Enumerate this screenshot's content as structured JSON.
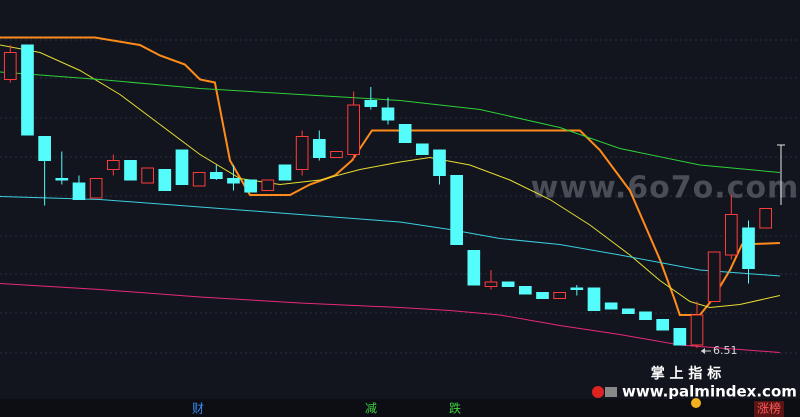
{
  "chart_data": {
    "type": "candlestick",
    "xlim": [
      -0.6,
      46
    ],
    "ylim": [
      6.05,
      8.83
    ],
    "up_color": "#ff3c3c",
    "down_color": "#54fcfc",
    "ohlc": {
      "open": [
        8.3,
        8.53,
        7.92,
        7.64,
        7.61,
        7.51,
        7.7,
        7.76,
        7.61,
        7.7,
        7.83,
        7.59,
        7.68,
        7.64,
        7.63,
        7.56,
        7.73,
        7.7,
        7.9,
        7.78,
        7.8,
        8.16,
        8.11,
        8.0,
        7.87,
        7.83,
        7.66,
        7.16,
        6.92,
        6.95,
        6.92,
        6.88,
        6.84,
        6.91,
        6.91,
        6.81,
        6.77,
        6.75,
        6.7,
        6.64,
        6.53,
        6.82,
        7.13,
        7.31,
        7.31
      ],
      "high": [
        8.53,
        8.53,
        7.92,
        7.82,
        7.66,
        7.64,
        7.8,
        7.76,
        7.71,
        7.7,
        7.83,
        7.68,
        7.73,
        7.73,
        7.63,
        7.63,
        7.73,
        7.96,
        7.96,
        7.82,
        8.22,
        8.25,
        8.18,
        8.0,
        7.87,
        7.83,
        7.66,
        7.16,
        7.03,
        6.95,
        6.92,
        6.88,
        6.88,
        6.93,
        6.91,
        6.81,
        6.77,
        6.75,
        6.7,
        6.64,
        6.82,
        7.15,
        7.53,
        7.36,
        7.44
      ],
      "low": [
        8.28,
        7.93,
        7.46,
        7.6,
        7.5,
        7.51,
        7.66,
        7.63,
        7.61,
        7.56,
        7.6,
        7.59,
        7.63,
        7.56,
        7.55,
        7.56,
        7.63,
        7.66,
        7.76,
        7.78,
        7.76,
        8.1,
        8.0,
        7.88,
        7.8,
        7.6,
        7.2,
        6.93,
        6.9,
        6.92,
        6.87,
        6.84,
        6.84,
        6.86,
        6.76,
        6.77,
        6.74,
        6.7,
        6.63,
        6.53,
        6.51,
        6.82,
        7.1,
        6.94,
        7.31
      ],
      "close": [
        8.48,
        7.93,
        7.76,
        7.63,
        7.5,
        7.64,
        7.76,
        7.63,
        7.71,
        7.56,
        7.6,
        7.68,
        7.64,
        7.61,
        7.55,
        7.63,
        7.63,
        7.92,
        7.78,
        7.82,
        8.13,
        8.12,
        8.03,
        7.88,
        7.8,
        7.66,
        7.2,
        6.93,
        6.95,
        6.92,
        6.87,
        6.84,
        6.88,
        6.9,
        6.76,
        6.77,
        6.74,
        6.7,
        6.63,
        6.53,
        6.73,
        7.15,
        7.4,
        7.04,
        7.44
      ]
    },
    "lines": [
      {
        "color": "#ff8c1a",
        "width": 2,
        "x": [
          -0.6,
          4.93,
          7.55,
          8.72,
          10.17,
          11.05,
          11.92,
          12.8,
          13.96,
          16.29,
          17.45,
          18.91,
          19.9,
          21.07,
          33.18,
          34.34,
          36.09,
          37.84,
          38.71,
          39.0,
          40.17,
          40.87,
          41.92,
          42.62,
          44.83
        ],
        "values": [
          8.58,
          8.58,
          8.53,
          8.46,
          8.4,
          8.3,
          8.28,
          7.76,
          7.53,
          7.53,
          7.6,
          7.66,
          7.76,
          7.96,
          7.96,
          7.83,
          7.56,
          7.1,
          6.83,
          6.73,
          6.73,
          6.83,
          7.03,
          7.2,
          7.21
        ]
      },
      {
        "color": "#e6dc32",
        "width": 1,
        "x": [
          -0.6,
          1.73,
          4.06,
          6.39,
          8.72,
          11.05,
          13.38,
          15.71,
          18.04,
          20.37,
          22.7,
          24.44,
          26.77,
          29.1,
          31.43,
          33.76,
          36.09,
          37.84,
          39.59,
          40.75,
          42.5,
          44.83
        ],
        "values": [
          8.53,
          8.48,
          8.36,
          8.2,
          8.0,
          7.8,
          7.64,
          7.6,
          7.63,
          7.7,
          7.75,
          7.78,
          7.73,
          7.63,
          7.5,
          7.33,
          7.13,
          6.96,
          6.82,
          6.78,
          6.8,
          6.86
        ]
      },
      {
        "color": "#2fcf3a",
        "width": 1,
        "x": [
          -0.6,
          5.22,
          11.05,
          16.87,
          22.7,
          27.36,
          32.01,
          35.51,
          40.17,
          44.83
        ],
        "values": [
          8.35,
          8.3,
          8.24,
          8.2,
          8.16,
          8.1,
          7.98,
          7.84,
          7.73,
          7.68
        ]
      },
      {
        "color": "#3ccfe0",
        "width": 1,
        "x": [
          -0.6,
          5.22,
          11.05,
          16.87,
          22.7,
          25.61,
          28.52,
          32.01,
          35.51,
          40.17,
          44.83
        ],
        "values": [
          7.52,
          7.5,
          7.45,
          7.4,
          7.35,
          7.3,
          7.24,
          7.2,
          7.13,
          7.03,
          6.99
        ]
      },
      {
        "color": "#e8287a",
        "width": 1,
        "x": [
          -0.6,
          5.22,
          11.05,
          16.87,
          22.7,
          25.61,
          28.52,
          32.01,
          35.51,
          39.0,
          42.5,
          44.83
        ],
        "values": [
          6.94,
          6.9,
          6.85,
          6.81,
          6.78,
          6.76,
          6.73,
          6.66,
          6.6,
          6.53,
          6.5,
          6.48
        ]
      }
    ],
    "low_marker": 6.51,
    "bottom_labels": [
      "财",
      "减",
      "跌",
      "涨榜"
    ],
    "watermark": "www.6o7o.com",
    "brand_title": "掌 上 指 标",
    "brand_url": "www.palmindex.com"
  }
}
